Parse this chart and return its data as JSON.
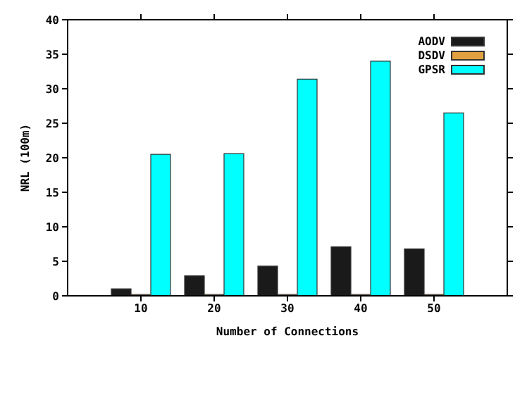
{
  "chart_data": {
    "type": "bar",
    "xlabel": "Number of Connections",
    "ylabel": "NRL (100m)",
    "x": [
      10,
      20,
      30,
      40,
      50
    ],
    "xlim": [
      0,
      60
    ],
    "xticks": [
      10,
      20,
      30,
      40,
      50
    ],
    "ylim": [
      0,
      40
    ],
    "yticks": [
      0,
      5,
      10,
      15,
      20,
      25,
      30,
      35,
      40
    ],
    "series": [
      {
        "name": "AODV",
        "color": "#1a1a1a",
        "values": [
          1.0,
          2.9,
          4.3,
          7.1,
          6.8
        ]
      },
      {
        "name": "DSDV",
        "color": "#e0a040",
        "values": [
          0.2,
          0.2,
          0.2,
          0.2,
          0.2
        ]
      },
      {
        "name": "GPSR",
        "color": "#00ffff",
        "values": [
          20.5,
          20.6,
          31.4,
          34.0,
          26.5
        ]
      }
    ],
    "grid": false,
    "legend": "top right"
  }
}
